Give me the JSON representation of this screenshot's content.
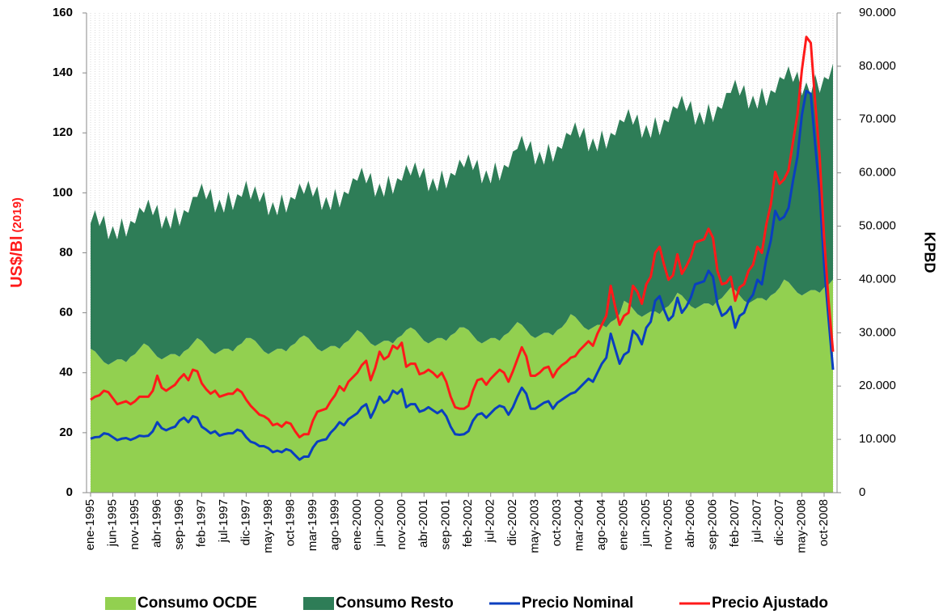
{
  "chart_data": {
    "type": "combo",
    "y_label": "US$/Bl",
    "y_label_note": "(2019)",
    "y2_label": "KPBD",
    "ylim": [
      0,
      160
    ],
    "yticks": [
      0,
      20,
      40,
      60,
      80,
      100,
      120,
      140,
      160
    ],
    "y2lim": [
      0,
      90000
    ],
    "y2ticks": [
      0,
      {
        "value": 10000,
        "label": "10.000"
      },
      {
        "value": 20000,
        "label": "20.000"
      },
      {
        "value": 30000,
        "label": "30.000"
      },
      {
        "value": 40000,
        "label": "40.000"
      },
      {
        "value": 50000,
        "label": "50.000"
      },
      {
        "value": 60000,
        "label": "60.000"
      },
      {
        "value": 70000,
        "label": "70.000"
      },
      {
        "value": 80000,
        "label": "80.000"
      },
      {
        "value": 90000,
        "label": "90.000"
      }
    ],
    "legend": "bottom",
    "categories": [
      "ene-1995",
      null,
      null,
      null,
      null,
      "jun-1995",
      null,
      null,
      null,
      null,
      "nov-1995",
      null,
      null,
      null,
      null,
      "abr-1996",
      null,
      null,
      null,
      null,
      "sep-1996",
      null,
      null,
      null,
      null,
      "feb-1997",
      null,
      null,
      null,
      null,
      "jul-1997",
      null,
      null,
      null,
      null,
      "dic-1997",
      null,
      null,
      null,
      null,
      "may-1998",
      null,
      null,
      null,
      null,
      "oct-1998",
      null,
      null,
      null,
      null,
      "mar-1999",
      null,
      null,
      null,
      null,
      "ago-1999",
      null,
      null,
      null,
      null,
      "ene-2000",
      null,
      null,
      null,
      null,
      "jun-2000",
      null,
      null,
      null,
      null,
      "nov-2000",
      null,
      null,
      null,
      null,
      "abr-2001",
      null,
      null,
      null,
      null,
      "sep-2001",
      null,
      null,
      null,
      null,
      "feb-2002",
      null,
      null,
      null,
      null,
      "jul-2002",
      null,
      null,
      null,
      null,
      "dic-2002",
      null,
      null,
      null,
      null,
      "may-2003",
      null,
      null,
      null,
      null,
      "oct-2003",
      null,
      null,
      null,
      null,
      "mar-2004",
      null,
      null,
      null,
      null,
      "ago-2004",
      null,
      null,
      null,
      null,
      "ene-2005",
      null,
      null,
      null,
      null,
      "jun-2005",
      null,
      null,
      null,
      null,
      "nov-2005",
      null,
      null,
      null,
      null,
      "abr-2006",
      null,
      null,
      null,
      null,
      "sep-2006",
      null,
      null,
      null,
      null,
      "feb-2007",
      null,
      null,
      null,
      null,
      "jul-2007",
      null,
      null,
      null,
      null,
      "dic-2007",
      null,
      null,
      null,
      null,
      "may-2008",
      null,
      null,
      null,
      null,
      "oct-2008",
      null,
      null
    ],
    "series": [
      {
        "name": "Consumo OCDE",
        "type": "area",
        "axis": "y2",
        "color": "#92d050",
        "values": [
          27000,
          26500,
          25500,
          24500,
          24000,
          24500,
          25000,
          25000,
          24500,
          25500,
          26000,
          27000,
          28000,
          27500,
          26500,
          25500,
          25000,
          25500,
          26000,
          26000,
          25500,
          26500,
          27000,
          28000,
          29000,
          28500,
          27500,
          26500,
          26000,
          26500,
          27000,
          27000,
          26500,
          27500,
          28000,
          29000,
          29000,
          28500,
          27500,
          26500,
          26000,
          26500,
          27000,
          27000,
          26500,
          27500,
          28000,
          29000,
          29500,
          29000,
          28000,
          27000,
          26500,
          27000,
          27500,
          27500,
          27000,
          28000,
          28500,
          29500,
          30500,
          30000,
          29000,
          28000,
          27500,
          28000,
          28500,
          28500,
          28000,
          29000,
          29500,
          30500,
          31000,
          30500,
          29500,
          28500,
          28000,
          28500,
          29000,
          29000,
          28500,
          29500,
          30000,
          31000,
          31000,
          30500,
          29500,
          28500,
          28000,
          28500,
          29000,
          29000,
          28500,
          29500,
          30000,
          31000,
          32000,
          31500,
          30500,
          29500,
          29000,
          29500,
          30000,
          30000,
          29500,
          30500,
          31000,
          32000,
          33500,
          33000,
          32000,
          31000,
          30500,
          31000,
          31500,
          31500,
          31000,
          32000,
          32500,
          33500,
          36000,
          35500,
          34500,
          33500,
          33000,
          33500,
          34000,
          34000,
          33500,
          34500,
          35000,
          36000,
          37500,
          37000,
          36000,
          35000,
          34500,
          35000,
          35500,
          35500,
          35000,
          36000,
          36500,
          37500,
          38500,
          38000,
          37000,
          36000,
          35500,
          36000,
          36500,
          36500,
          36000,
          37000,
          37500,
          38500,
          40000,
          39500,
          38500,
          37500,
          37000,
          37500,
          38000,
          38000,
          37500,
          38500,
          39000,
          40000
        ]
      },
      {
        "name": "Consumo Resto",
        "type": "area",
        "axis": "y2",
        "color": "#2e7d57",
        "values": [
          23500,
          26500,
          24500,
          27500,
          23500,
          25500,
          22500,
          26500,
          23500,
          25500,
          24500,
          26500,
          24500,
          27500,
          25500,
          28500,
          24500,
          26500,
          23500,
          27500,
          24500,
          26500,
          25500,
          27500,
          26500,
          29500,
          27500,
          30500,
          26500,
          28500,
          25500,
          29500,
          26500,
          28500,
          27500,
          29500,
          26000,
          29000,
          27000,
          30000,
          26000,
          28000,
          25000,
          29000,
          26000,
          28000,
          27000,
          29000,
          26500,
          29500,
          27500,
          30500,
          26500,
          28500,
          25500,
          29500,
          26500,
          28500,
          27500,
          29500,
          28000,
          31000,
          29000,
          32000,
          28000,
          30000,
          27000,
          31000,
          28000,
          30000,
          29000,
          31000,
          28500,
          31500,
          29500,
          32500,
          28500,
          30500,
          27500,
          31500,
          28500,
          30500,
          29500,
          31500,
          30000,
          33000,
          31000,
          34000,
          30000,
          32000,
          29000,
          33000,
          30000,
          32000,
          31000,
          33000,
          32500,
          35500,
          33500,
          36500,
          32500,
          34500,
          31500,
          35500,
          32500,
          34500,
          33500,
          35500,
          33500,
          36500,
          34500,
          37500,
          33500,
          35500,
          32500,
          36500,
          33500,
          35500,
          34500,
          36500,
          33500,
          36500,
          34500,
          37500,
          33500,
          35500,
          32500,
          36500,
          33500,
          35500,
          34500,
          36500,
          34500,
          37500,
          35500,
          38500,
          34500,
          36500,
          33500,
          37500,
          34500,
          36500,
          35500,
          37500,
          36500,
          39500,
          37500,
          40500,
          36500,
          38500,
          35500,
          39500,
          36500,
          38500,
          37500,
          39500,
          37500,
          40500,
          38500,
          41500,
          37500,
          39500,
          36500,
          40500,
          37500,
          39500,
          38500,
          40500
        ]
      },
      {
        "name": "Precio Nominal",
        "type": "line",
        "color": "#0a3fbf",
        "values": [
          18,
          18.5,
          18.6,
          19.8,
          19.5,
          18.5,
          17.5,
          18,
          18.2,
          17.6,
          18.2,
          19,
          18.8,
          19,
          20.5,
          23.5,
          21.5,
          20.8,
          21.5,
          22,
          24,
          25,
          23.5,
          25.5,
          25,
          22,
          21,
          19.8,
          20.5,
          19,
          19.5,
          19.8,
          19.8,
          21,
          20.5,
          18.5,
          17,
          16.5,
          15.5,
          15.5,
          14.8,
          13.5,
          14,
          13.5,
          14.5,
          14,
          12.5,
          11,
          12,
          12,
          15,
          17,
          17.5,
          17.8,
          20,
          21.5,
          23.5,
          22.5,
          24.5,
          25.5,
          26.5,
          28.5,
          29.5,
          25,
          28,
          32,
          30,
          31,
          34,
          33,
          34.5,
          28.5,
          29.5,
          29.5,
          27,
          27.5,
          28.5,
          27.5,
          26.5,
          27.5,
          25.5,
          22,
          19.5,
          19.3,
          19.5,
          20.5,
          24,
          26,
          26.5,
          25,
          26.5,
          28,
          29,
          28.5,
          26,
          28.5,
          32,
          35,
          33,
          28,
          28,
          29,
          30,
          30.5,
          28,
          30,
          31,
          32,
          33,
          33.5,
          35,
          36.5,
          38,
          37,
          40,
          43,
          45,
          53,
          48,
          43,
          46,
          47,
          54,
          52.5,
          49.5,
          55,
          57,
          64,
          65.5,
          61,
          57.5,
          59,
          65,
          60,
          62,
          65,
          69.5,
          70,
          70.5,
          74,
          72,
          63,
          59,
          60,
          62,
          55,
          59,
          60,
          64,
          66,
          71,
          69.5,
          78,
          84,
          94,
          91,
          92,
          95,
          104,
          112,
          126,
          134,
          133,
          116,
          100,
          76,
          58,
          41
        ]
      },
      {
        "name": "Precio Ajustado",
        "type": "line",
        "color": "#ff1a1a",
        "values": [
          31,
          32,
          32.5,
          34,
          33.5,
          31.5,
          29.5,
          30,
          30.5,
          29.5,
          30.5,
          32,
          32,
          32,
          34,
          39,
          35,
          34,
          35,
          36,
          38,
          39.5,
          37.5,
          41,
          40.5,
          36.5,
          34.5,
          33,
          34,
          32,
          32.5,
          33,
          33,
          34.5,
          33.5,
          31,
          29,
          27.5,
          26,
          25.5,
          24.5,
          22.5,
          23,
          22,
          23.5,
          23,
          20.5,
          18.5,
          19.5,
          19.5,
          24,
          27,
          27.5,
          28,
          30.5,
          32.5,
          35.5,
          34,
          37,
          38.5,
          40,
          42.5,
          44,
          37.5,
          41.5,
          47,
          44.5,
          45.5,
          49,
          48,
          50,
          42,
          43,
          43,
          39.5,
          40,
          41,
          40,
          38.5,
          40,
          37,
          32,
          28.5,
          28,
          28,
          29,
          34,
          37.5,
          38,
          36,
          38,
          39.5,
          41,
          40,
          37,
          40.5,
          44.5,
          48.5,
          45.5,
          39,
          39,
          40,
          41.5,
          42,
          38.5,
          41,
          42.5,
          43.5,
          45,
          45.5,
          47.5,
          49,
          50.5,
          49,
          53,
          56,
          59,
          69,
          62,
          56,
          59,
          60,
          69,
          67,
          63,
          69.5,
          72,
          80,
          82,
          76,
          71,
          72.5,
          79.5,
          73,
          75.5,
          78.5,
          83.5,
          84,
          84.5,
          88,
          85,
          74,
          69.5,
          70,
          72,
          64,
          68.5,
          69.5,
          74,
          76,
          82,
          80,
          89.5,
          96,
          107,
          103,
          104.5,
          107.5,
          117,
          126,
          141,
          152,
          150,
          130,
          112,
          85,
          64,
          47
        ]
      }
    ]
  }
}
